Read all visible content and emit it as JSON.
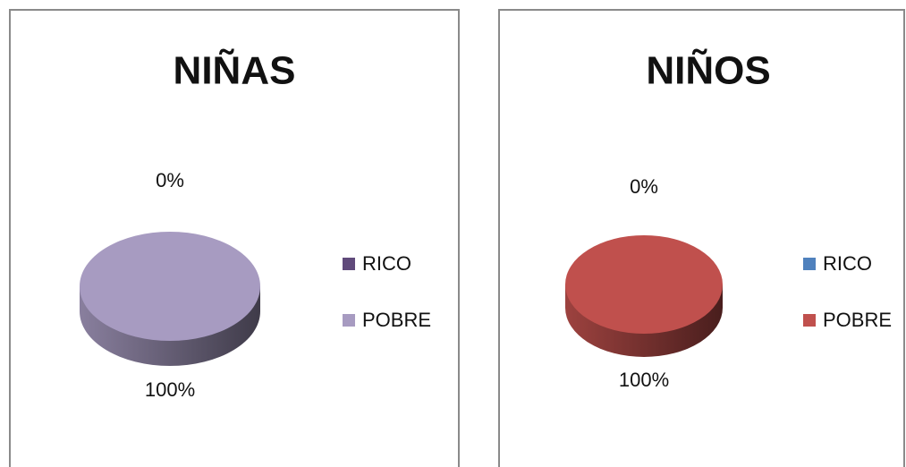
{
  "chart_data": [
    {
      "type": "pie",
      "title": "NIÑAS",
      "categories": [
        "RICO",
        "POBRE"
      ],
      "values": [
        0,
        100
      ],
      "value_labels": [
        "0%",
        "100%"
      ],
      "colors": [
        "#604a7b",
        "#a79bc1"
      ],
      "legend": "right"
    },
    {
      "type": "pie",
      "title": "NIÑOS",
      "categories": [
        "RICO",
        "POBRE"
      ],
      "values": [
        0,
        100
      ],
      "value_labels": [
        "0%",
        "100%"
      ],
      "colors": [
        "#4f81bd",
        "#c0504d"
      ],
      "legend": "right"
    }
  ]
}
